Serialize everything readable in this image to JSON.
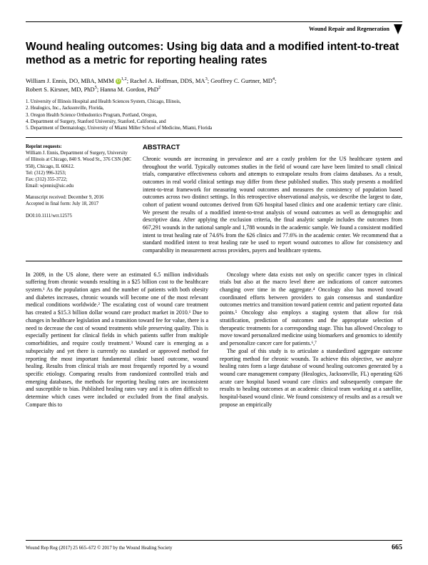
{
  "journal_header": "Wound Repair and Regeneration",
  "title": "Wound healing outcomes: Using big data and a modified intent-to-treat method as a metric for reporting healing rates",
  "authors_html": "William J. Ennis, DO, MBA, MMM <sup>1,2</sup>; Rachel A. Hoffman, DDS, MA<sup>3</sup>; Geoffrey C. Gurtner, MD<sup>4</sup>; Robert S. Kirsner, MD, PhD<sup>5</sup>; Hanna M. Gordon, PhD<sup>2</sup>",
  "affils": [
    "1. University of Illinois Hospital and Health Sciences System, Chicago, Illinois,",
    "2. Healogics, Inc., Jacksonville, Florida,",
    "3. Oregon Health Science Orthodontics Program, Portland, Oregon,",
    "4. Department of Surgery, Stanford University, Stanford, California, and",
    "5. Department of Dermatology, University of Miami Miller School of Medicine, Miami, Florida"
  ],
  "reprint": {
    "heading": "Reprint requests:",
    "lines": "William J. Ennis, Department of Surgery, University of Illinois at Chicago, 840 S. Wood St., 376 CSN (MC 958), Chicago, IL 60612.\nTel: (312) 996-3253;\nFax: (312) 355-3722;\nEmail: wjennis@uic.edu"
  },
  "dates": "Manuscript received: December 9, 2016\nAccepted in final form: July 18, 2017",
  "doi": "DOI:10.1111/wrr.12575",
  "abstract_heading": "ABSTRACT",
  "abstract_body": "Chronic wounds are increasing in prevalence and are a costly problem for the US healthcare system and throughout the world. Typically outcomes studies in the field of wound care have been limited to small clinical trials, comparative effectiveness cohorts and attempts to extrapolate results from claims databases. As a result, outcomes in real world clinical settings may differ from these published studies. This study presents a modified intent-to-treat framework for measuring wound outcomes and measures the consistency of population based outcomes across two distinct settings. In this retrospective observational analysis, we describe the largest to date, cohort of patient wound outcomes derived from 626 hospital based clinics and one academic tertiary care clinic. We present the results of a modified intent-to-treat analysis of wound outcomes as well as demographic and descriptive data. After applying the exclusion criteria, the final analytic sample includes the outcomes from 667,291 wounds in the national sample and 1,788 wounds in the academic sample. We found a consistent modified intent to treat healing rate of 74.6% from the 626 clinics and 77.6% in the academic center. We recommend that a standard modified intent to treat healing rate be used to report wound outcomes to allow for consistency and comparability in measurement across providers, payers and healthcare systems.",
  "body_p1": "In 2009, in the US alone, there were an estimated 6.5 million individuals suffering from chronic wounds resulting in a $25 billion cost to the healthcare system.¹ As the population ages and the number of patients with both obesity and diabetes increases, chronic wounds will become one of the most relevant medical conditions worldwide.² The escalating cost of wound care treatment has created a $15.3 billion dollar wound care product market in 2010.¹ Due to changes in healthcare legislation and a transition toward fee for value, there is a need to decrease the cost of wound treatments while preserving quality. This is especially pertinent for clinical fields in which patients suffer from multiple comorbidities, and require costly treatment.³ Wound care is emerging as a subspecialty and yet there is currently no standard or approved method for reporting the most important fundamental clinic based outcome, wound healing. Results from clinical trials are most frequently reported by a wound specific etiology. Comparing results from randomized controlled trials and emerging databases, the methods for reporting healing rates are inconsistent and susceptible to bias. Published healing rates vary and it is often difficult to determine which cases were included or excluded from the final analysis. Compare this to",
  "body_p2": "Oncology where data exists not only on specific cancer types in clinical trials but also at the macro level there are indications of cancer outcomes changing over time in the aggregate.⁴ Oncology also has moved toward coordinated efforts between providers to gain consensus and standardize outcomes metrics and transition toward patient centric and patient reported data points.⁵ Oncology also employs a staging system that allow for risk stratification, prediction of outcomes and the appropriate selection of therapeutic treatments for a corresponding stage. This has allowed Oncology to move toward personalized medicine using biomarkers and genomics to identify and personalize cancer care for patients.⁶,⁷",
  "body_p3": "The goal of this study is to articulate a standardized aggregate outcome reporting method for chronic wounds. To achieve this objective, we analyze healing rates form a large database of wound healing outcomes generated by a wound care management company (Healogics, Jacksonville, FL) operating 626 acute care hospital based wound care clinics and subsequently compare the results to healing outcomes at an academic clinical team working at a satellite, hospital-based wound clinic. We found consistency of results and as a result we propose an empirically",
  "footer_cite": "Wound Rep Reg (2017) 25 665–672 © 2017 by the Wound Healing Society",
  "page_number": "665"
}
